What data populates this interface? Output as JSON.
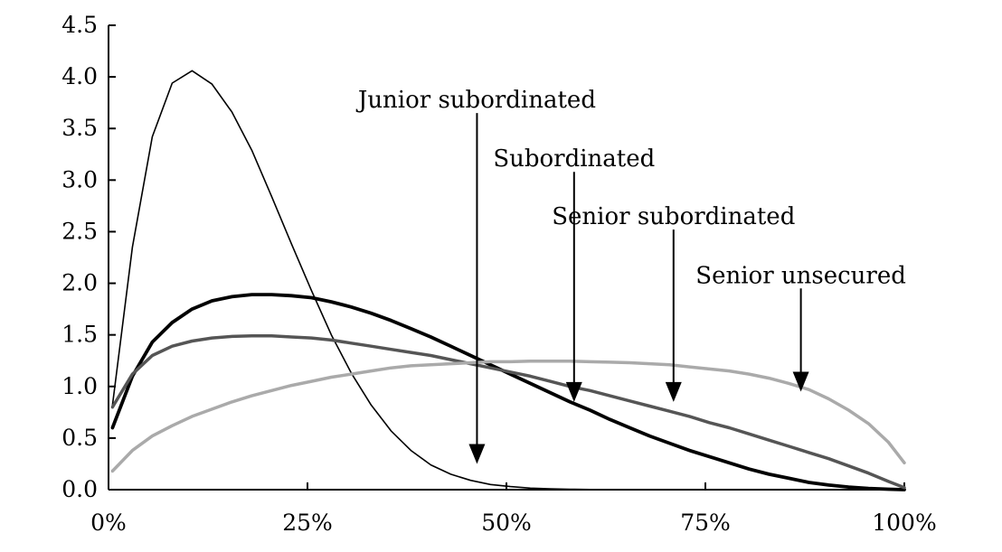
{
  "chart_data": {
    "type": "line",
    "title": "",
    "xlabel": "",
    "ylabel": "",
    "xlim": [
      0,
      100
    ],
    "ylim": [
      0,
      4.5
    ],
    "x_ticks": [
      0,
      25,
      50,
      75,
      100
    ],
    "x_tick_labels": [
      "0%",
      "25%",
      "50%",
      "75%",
      "100%"
    ],
    "y_ticks": [
      0,
      0.5,
      1,
      1.5,
      2,
      2.5,
      3,
      3.5,
      4,
      4.5
    ],
    "y_tick_labels": [
      "0.0",
      "0.5",
      "1.0",
      "1.5",
      "2.0",
      "2.5",
      "3.0",
      "3.5",
      "4.0",
      "4.5"
    ],
    "grid": false,
    "legend": "none",
    "series": [
      {
        "name": "Junior subordinated",
        "color": "#000000",
        "stroke_style": "thin",
        "x": [
          0.5,
          3,
          5.5,
          8,
          10.5,
          13,
          15.5,
          18,
          20.5,
          23,
          25.5,
          28,
          30.5,
          33,
          35.5,
          38,
          40.5,
          43,
          45.5,
          48,
          50.5,
          53,
          55.5,
          58,
          60.5,
          63,
          68,
          73,
          78,
          83,
          88,
          93,
          98,
          100
        ],
        "y": [
          0.82,
          2.35,
          3.42,
          3.94,
          4.06,
          3.93,
          3.66,
          3.29,
          2.84,
          2.38,
          1.93,
          1.5,
          1.13,
          0.82,
          0.57,
          0.38,
          0.24,
          0.15,
          0.09,
          0.05,
          0.03,
          0.015,
          0.008,
          0.004,
          0.002,
          0.001,
          0.0,
          0.0,
          0.0,
          0.0,
          0.0,
          0.0,
          0.0,
          0.0
        ]
      },
      {
        "name": "Subordinated",
        "color": "#000000",
        "stroke_style": "thick",
        "x": [
          0.5,
          3,
          5.5,
          8,
          10.5,
          13,
          15.5,
          18,
          20.5,
          23,
          25.5,
          28,
          30.5,
          33,
          35.5,
          38,
          40.5,
          43,
          45.5,
          48,
          50.5,
          53,
          55.5,
          58,
          60.5,
          63,
          65.5,
          68,
          70.5,
          73,
          75.5,
          78,
          80.5,
          83,
          85.5,
          88,
          90.5,
          93,
          95.5,
          98,
          100
        ],
        "y": [
          0.6,
          1.1,
          1.43,
          1.62,
          1.75,
          1.83,
          1.87,
          1.89,
          1.89,
          1.88,
          1.86,
          1.82,
          1.77,
          1.71,
          1.64,
          1.56,
          1.48,
          1.39,
          1.3,
          1.21,
          1.12,
          1.03,
          0.94,
          0.85,
          0.77,
          0.68,
          0.6,
          0.52,
          0.45,
          0.38,
          0.32,
          0.26,
          0.2,
          0.15,
          0.11,
          0.07,
          0.045,
          0.025,
          0.012,
          0.004,
          0.0
        ]
      },
      {
        "name": "Senior subordinated",
        "color": "#555555",
        "stroke_style": "medium",
        "x": [
          0.5,
          3,
          5.5,
          8,
          10.5,
          13,
          15.5,
          18,
          20.5,
          23,
          25.5,
          28,
          30.5,
          33,
          35.5,
          38,
          40.5,
          43,
          45.5,
          48,
          50.5,
          53,
          55.5,
          58,
          60.5,
          63,
          65.5,
          68,
          70.5,
          73,
          75.5,
          78,
          80.5,
          83,
          85.5,
          88,
          90.5,
          93,
          95.5,
          98,
          100
        ],
        "y": [
          0.8,
          1.12,
          1.3,
          1.39,
          1.44,
          1.47,
          1.485,
          1.49,
          1.49,
          1.48,
          1.47,
          1.45,
          1.42,
          1.39,
          1.36,
          1.33,
          1.3,
          1.26,
          1.22,
          1.18,
          1.14,
          1.1,
          1.05,
          1.0,
          0.96,
          0.91,
          0.86,
          0.81,
          0.76,
          0.71,
          0.65,
          0.6,
          0.54,
          0.48,
          0.42,
          0.36,
          0.3,
          0.23,
          0.16,
          0.08,
          0.02
        ]
      },
      {
        "name": "Senior unsecured",
        "color": "#aaaaaa",
        "stroke_style": "medium",
        "x": [
          0.5,
          3,
          5.5,
          8,
          10.5,
          13,
          15.5,
          18,
          20.5,
          23,
          25.5,
          28,
          30.5,
          33,
          35.5,
          38,
          40.5,
          43,
          45.5,
          48,
          50.5,
          53,
          55.5,
          58,
          60.5,
          63,
          65.5,
          68,
          70.5,
          73,
          75.5,
          78,
          80.5,
          83,
          85.5,
          88,
          90.5,
          93,
          95.5,
          98,
          100
        ],
        "y": [
          0.18,
          0.38,
          0.52,
          0.62,
          0.71,
          0.78,
          0.85,
          0.91,
          0.96,
          1.01,
          1.05,
          1.09,
          1.12,
          1.15,
          1.18,
          1.2,
          1.21,
          1.22,
          1.23,
          1.24,
          1.24,
          1.245,
          1.245,
          1.245,
          1.24,
          1.235,
          1.23,
          1.22,
          1.21,
          1.19,
          1.17,
          1.15,
          1.12,
          1.08,
          1.03,
          0.97,
          0.88,
          0.77,
          0.64,
          0.46,
          0.26
        ]
      }
    ],
    "annotations": [
      {
        "text": "Junior subordinated",
        "arrow_x": 46.3,
        "arrow_y_start": 3.65,
        "arrow_y_end": 0.25
      },
      {
        "text": "Subordinated",
        "arrow_x": 58.5,
        "arrow_y_start": 3.08,
        "arrow_y_end": 0.85
      },
      {
        "text": "Senior subordinated",
        "arrow_x": 71,
        "arrow_y_start": 2.52,
        "arrow_y_end": 0.85
      },
      {
        "text": "Senior unsecured",
        "arrow_x": 87,
        "arrow_y_start": 1.95,
        "arrow_y_end": 0.95
      }
    ]
  }
}
